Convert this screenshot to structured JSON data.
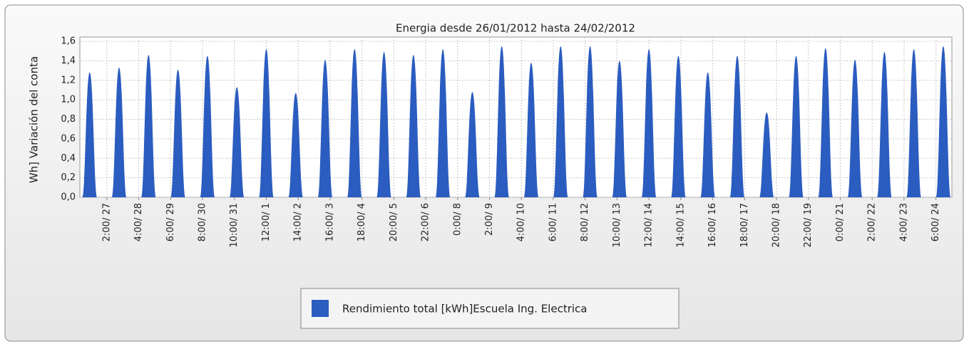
{
  "chart_data": {
    "type": "area",
    "title": "Energia desde 26/01/2012 hasta 24/02/2012",
    "y_label": "Wh] Variación del conta",
    "series": [
      {
        "name": "Rendimiento total [kWh]Escuela Ing. Electrica",
        "color": "#2b5cc0",
        "x": [
          12,
          36,
          60,
          84,
          108,
          132,
          156,
          180,
          204,
          228,
          252,
          276,
          300,
          324,
          348,
          372,
          396,
          420,
          444,
          468,
          492,
          516,
          540,
          564,
          588,
          612,
          636,
          660,
          684,
          708
        ],
        "values": [
          1.28,
          1.33,
          1.46,
          1.31,
          1.45,
          1.13,
          1.52,
          1.07,
          1.41,
          1.52,
          1.49,
          1.46,
          1.52,
          1.08,
          1.55,
          1.38,
          1.55,
          1.55,
          1.4,
          1.52,
          1.45,
          1.28,
          1.45,
          0.87,
          1.45,
          1.53,
          1.41,
          1.49,
          1.52,
          1.55
        ]
      }
    ],
    "xlim": [
      4,
      715
    ],
    "xticks": [
      {
        "value": 26,
        "label": "2:00/ 27"
      },
      {
        "value": 52,
        "label": "4:00/ 28"
      },
      {
        "value": 78,
        "label": "6:00/ 29"
      },
      {
        "value": 104,
        "label": "8:00/ 30"
      },
      {
        "value": 130,
        "label": "10:00/ 31"
      },
      {
        "value": 156,
        "label": "12:00/ 1"
      },
      {
        "value": 182,
        "label": "14:00/ 2"
      },
      {
        "value": 208,
        "label": "16:00/ 3"
      },
      {
        "value": 234,
        "label": "18:00/ 4"
      },
      {
        "value": 260,
        "label": "20:00/ 5"
      },
      {
        "value": 286,
        "label": "22:00/ 6"
      },
      {
        "value": 312,
        "label": "0:00/ 8"
      },
      {
        "value": 338,
        "label": "2:00/ 9"
      },
      {
        "value": 364,
        "label": "4:00/ 10"
      },
      {
        "value": 390,
        "label": "6:00/ 11"
      },
      {
        "value": 416,
        "label": "8:00/ 12"
      },
      {
        "value": 442,
        "label": "10:00/ 13"
      },
      {
        "value": 468,
        "label": "12:00/ 14"
      },
      {
        "value": 494,
        "label": "14:00/ 15"
      },
      {
        "value": 520,
        "label": "16:00/ 16"
      },
      {
        "value": 546,
        "label": "18:00/ 17"
      },
      {
        "value": 572,
        "label": "20:00/ 18"
      },
      {
        "value": 598,
        "label": "22:00/ 19"
      },
      {
        "value": 624,
        "label": "0:00/ 21"
      },
      {
        "value": 650,
        "label": "2:00/ 22"
      },
      {
        "value": 676,
        "label": "4:00/ 23"
      },
      {
        "value": 702,
        "label": "6:00/ 24"
      }
    ],
    "ylim": [
      0,
      1.6
    ],
    "yticks": [
      {
        "value": 0,
        "label": "0,0"
      },
      {
        "value": 0.2,
        "label": "0,2"
      },
      {
        "value": 0.4,
        "label": "0,4"
      },
      {
        "value": 0.6,
        "label": "0,6"
      },
      {
        "value": 0.8,
        "label": "0,8"
      },
      {
        "value": 1,
        "label": "1,0"
      },
      {
        "value": 1.2,
        "label": "1,2"
      },
      {
        "value": 1.4,
        "label": "1,4"
      },
      {
        "value": 1.6,
        "label": "1,6"
      }
    ],
    "grid": true,
    "legend": "bottom"
  }
}
